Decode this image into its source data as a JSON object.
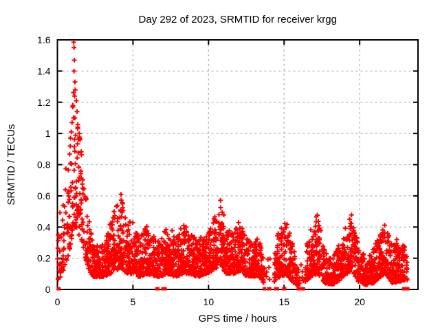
{
  "chart_data": {
    "type": "scatter",
    "title": "Day 292 of 2023, SRMTID for receiver krgg",
    "xlabel": "GPS time / hours",
    "ylabel": "SRMTID / TECUs",
    "xlim": [
      0,
      23.86
    ],
    "ylim": [
      0,
      1.6
    ],
    "xticks": [
      0,
      5,
      10,
      15,
      20
    ],
    "xtick_labels": [
      "0",
      "5",
      "10",
      "15",
      "20"
    ],
    "yticks": [
      0,
      0.2,
      0.4,
      0.6,
      0.8,
      1.0,
      1.2,
      1.4,
      1.6
    ],
    "ytick_labels": [
      "0",
      "0.2",
      "0.4",
      "0.6",
      "0.8",
      "1",
      "1.2",
      "1.4",
      "1.6"
    ],
    "grid": true,
    "legend": "none",
    "marker": {
      "glyph": "plus",
      "size": 7,
      "color": "#ff0000"
    },
    "colors": {
      "points": "#ff0000",
      "grid": "#b4b4b4",
      "border": "#000000",
      "background": "#ffffff"
    },
    "series_name": "SRMTID",
    "seed": 1337,
    "band_format": [
      "t_start_hours",
      "y_low",
      "y_high",
      "points_per_hour"
    ],
    "band": [
      [
        0.0,
        0.02,
        0.45,
        60
      ],
      [
        0.3,
        0.1,
        0.62,
        80
      ],
      [
        0.6,
        0.18,
        0.85,
        90
      ],
      [
        0.9,
        0.28,
        1.05,
        95
      ],
      [
        1.05,
        0.42,
        1.5,
        110
      ],
      [
        1.25,
        0.38,
        1.18,
        110
      ],
      [
        1.5,
        0.33,
        0.95,
        100
      ],
      [
        1.8,
        0.22,
        0.68,
        100
      ],
      [
        2.1,
        0.12,
        0.45,
        110
      ],
      [
        2.4,
        0.08,
        0.28,
        140
      ],
      [
        3.0,
        0.08,
        0.3,
        140
      ],
      [
        3.5,
        0.1,
        0.42,
        130
      ],
      [
        3.9,
        0.12,
        0.55,
        120
      ],
      [
        4.2,
        0.14,
        0.62,
        120
      ],
      [
        4.6,
        0.1,
        0.4,
        130
      ],
      [
        5.0,
        0.1,
        0.47,
        130
      ],
      [
        5.4,
        0.08,
        0.32,
        140
      ],
      [
        5.9,
        0.1,
        0.42,
        130
      ],
      [
        6.3,
        0.09,
        0.36,
        130
      ],
      [
        6.8,
        0.08,
        0.31,
        130
      ],
      [
        7.3,
        0.1,
        0.42,
        130
      ],
      [
        7.8,
        0.08,
        0.35,
        140
      ],
      [
        8.3,
        0.1,
        0.43,
        130
      ],
      [
        8.8,
        0.1,
        0.37,
        130
      ],
      [
        9.3,
        0.08,
        0.31,
        140
      ],
      [
        9.8,
        0.1,
        0.38,
        130
      ],
      [
        10.3,
        0.12,
        0.45,
        130
      ],
      [
        10.8,
        0.16,
        0.6,
        120
      ],
      [
        11.15,
        0.1,
        0.4,
        130
      ],
      [
        11.7,
        0.1,
        0.36,
        130
      ],
      [
        12.05,
        0.12,
        0.47,
        120
      ],
      [
        12.45,
        0.09,
        0.33,
        130
      ],
      [
        12.9,
        0.08,
        0.3,
        140
      ],
      [
        13.3,
        0.09,
        0.33,
        130
      ],
      [
        13.65,
        0.04,
        0.22,
        12
      ],
      [
        14.35,
        0.05,
        0.3,
        120
      ],
      [
        14.8,
        0.09,
        0.4,
        120
      ],
      [
        15.2,
        0.09,
        0.45,
        120
      ],
      [
        15.65,
        0.04,
        0.26,
        90
      ],
      [
        15.95,
        0.02,
        0.15,
        20
      ],
      [
        16.4,
        0.05,
        0.3,
        120
      ],
      [
        16.9,
        0.09,
        0.42,
        120
      ],
      [
        17.25,
        0.1,
        0.5,
        120
      ],
      [
        17.7,
        0.04,
        0.24,
        130
      ],
      [
        18.2,
        0.03,
        0.2,
        130
      ],
      [
        18.7,
        0.06,
        0.3,
        130
      ],
      [
        19.15,
        0.1,
        0.44,
        120
      ],
      [
        19.5,
        0.12,
        0.5,
        120
      ],
      [
        19.9,
        0.05,
        0.3,
        130
      ],
      [
        20.4,
        0.03,
        0.2,
        140
      ],
      [
        20.9,
        0.04,
        0.26,
        140
      ],
      [
        21.4,
        0.08,
        0.38,
        130
      ],
      [
        21.75,
        0.1,
        0.43,
        120
      ],
      [
        22.15,
        0.04,
        0.28,
        130
      ],
      [
        22.6,
        0.05,
        0.34,
        130
      ],
      [
        23.0,
        0.06,
        0.28,
        70
      ],
      [
        23.15,
        0.06,
        0.2,
        0
      ]
    ],
    "peak_outliers": [
      [
        1.08,
        1.585
      ],
      [
        1.1,
        1.55
      ],
      [
        1.12,
        1.47
      ],
      [
        1.1,
        1.4
      ],
      [
        1.16,
        1.33
      ],
      [
        1.18,
        1.28
      ],
      [
        1.14,
        1.24
      ],
      [
        1.25,
        1.21
      ],
      [
        1.02,
        1.17
      ],
      [
        1.3,
        1.14
      ],
      [
        1.06,
        1.1
      ],
      [
        0.97,
        1.07
      ],
      [
        1.35,
        1.04
      ],
      [
        0.92,
        1.01
      ],
      [
        1.44,
        1.0
      ],
      [
        0.86,
        0.97
      ],
      [
        1.5,
        0.96
      ]
    ],
    "zero_value_times": [
      0.06,
      0.1,
      6.58,
      6.64,
      7.0,
      7.06,
      7.13,
      13.7,
      13.98,
      14.04,
      14.45,
      14.55,
      14.98,
      15.04,
      15.95,
      16.0,
      16.04,
      16.08,
      16.12,
      16.16,
      16.2,
      16.24,
      16.28,
      22.92,
      23.1,
      23.18
    ]
  }
}
